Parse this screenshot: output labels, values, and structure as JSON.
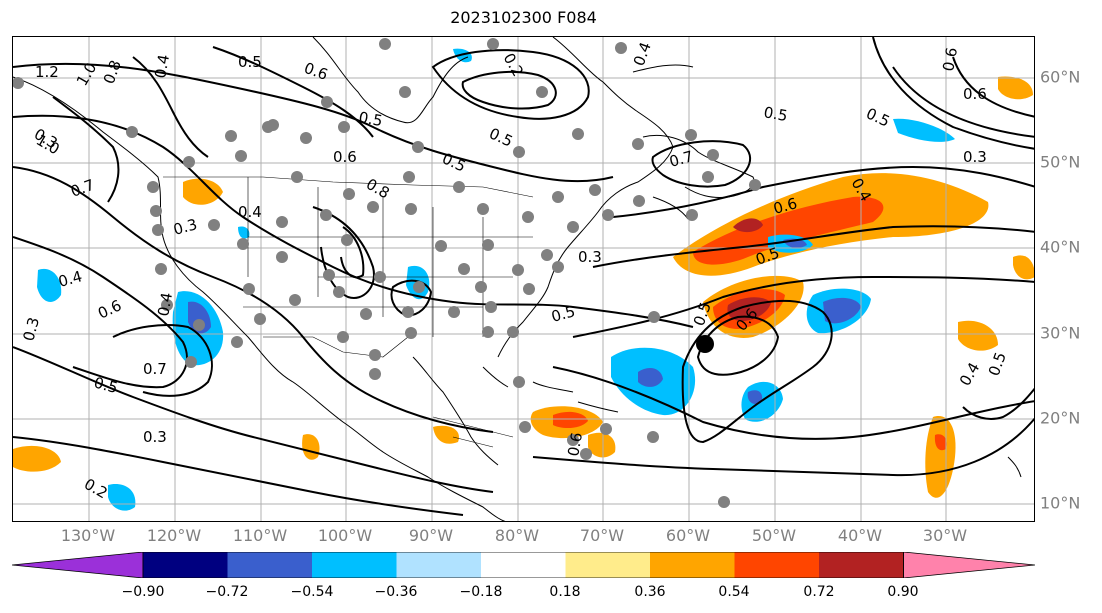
{
  "title": "2023102300 F084",
  "lon_labels": [
    "130°W",
    "120°W",
    "110°W",
    "100°W",
    "90°W",
    "80°W",
    "70°W",
    "60°W",
    "50°W",
    "40°W",
    "30°W"
  ],
  "lat_labels": [
    "60°N",
    "50°N",
    "40°N",
    "30°N",
    "20°N",
    "10°N"
  ],
  "colorbar": {
    "ticks": [
      "−0.90",
      "−0.72",
      "−0.54",
      "−0.36",
      "−0.18",
      "0.18",
      "0.36",
      "0.54",
      "0.72",
      "0.90"
    ],
    "colors": [
      "#9b30d9",
      "#000080",
      "#3a5fcd",
      "#00bfff",
      "#b0e2ff",
      "#ffffff",
      "#ffec8b",
      "#ffa500",
      "#ff4500",
      "#b22222",
      "#ff82ab"
    ]
  },
  "contour_labels": [
    "1.2",
    "1.0",
    "0.8",
    "0.4",
    "0.5",
    "0.6",
    "0.2",
    "0.5",
    "0.4",
    "0.6",
    "0.5",
    "0.6",
    "0.3",
    "1.0",
    "0.7",
    "0.6",
    "0.8",
    "0.4",
    "0.3",
    "0.3",
    "0.4",
    "0.6",
    "0.3",
    "0.7",
    "0.5",
    "0.3",
    "0.2",
    "0.5",
    "0.5",
    "0.6",
    "0.5",
    "0.4",
    "0.6",
    "0.5",
    "0.7",
    "0.4",
    "0.5",
    "0.4",
    "0.6",
    "0.3",
    "0.5",
    "0.5"
  ],
  "colors": {
    "axis_label": "#808080",
    "contour": "#000000",
    "station": "#808080"
  }
}
